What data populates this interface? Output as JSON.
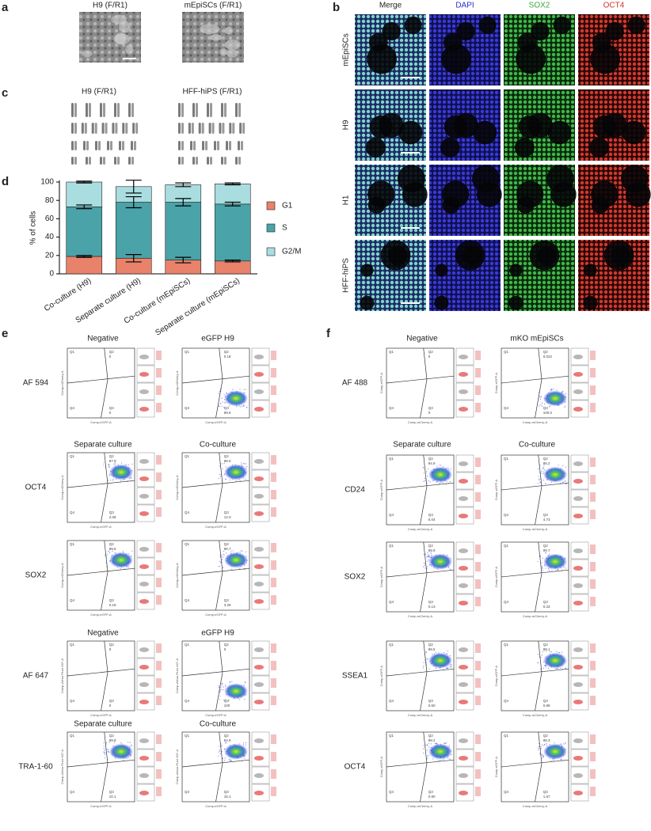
{
  "panel_a": {
    "label": "a",
    "titles": [
      "H9 (F/R1)",
      "mEpiSCs (F/R1)"
    ]
  },
  "panel_b": {
    "label": "b",
    "columns": [
      "Merge",
      "DAPI",
      "SOX2",
      "OCT4"
    ],
    "rows": [
      "mEpiSCs",
      "H9",
      "H1",
      "HFF-hiPS"
    ]
  },
  "panel_c": {
    "label": "c",
    "titles": [
      "H9 (F/R1)",
      "HFF-hiPS (F/R1)"
    ]
  },
  "chart_data": {
    "type": "bar",
    "stacked": true,
    "panel_label": "d",
    "ylabel": "% of cells",
    "categories": [
      "Co-culture (H9)",
      "Separate culture (H9)",
      "Co-culture (mEpiSCs)",
      "Separate culture (mEpiSCs)"
    ],
    "series": [
      {
        "name": "G1",
        "color": "#e8826a",
        "values": [
          19,
          17,
          15,
          14
        ],
        "errors": [
          1,
          4,
          3,
          1
        ]
      },
      {
        "name": "S",
        "color": "#4aa3a8",
        "values": [
          54,
          61,
          63,
          62
        ],
        "errors": [
          2,
          6,
          4,
          2
        ]
      },
      {
        "name": "G2/M",
        "color": "#a9dde0",
        "values": [
          27,
          17,
          19,
          22
        ],
        "errors": [
          1,
          7,
          2,
          1
        ]
      }
    ],
    "ylim": [
      0,
      100
    ],
    "yticks": [
      0,
      20,
      40,
      60,
      80,
      100
    ]
  },
  "panel_e": {
    "label": "e",
    "quadrants": [
      "Q1",
      "Q2",
      "Q3",
      "Q4"
    ],
    "blocks": [
      {
        "headings": [
          "Negative",
          "eGFP H9"
        ],
        "x_label": "Comp-eGFP-A",
        "y_label": "Comp-mCherry-A",
        "rows": [
          {
            "name": "AF 594",
            "plots": [
              {
                "q2": "0",
                "q3": "0"
              },
              {
                "q2": "0.18",
                "q3": "99.8"
              }
            ]
          }
        ]
      },
      {
        "headings": [
          "Separate culture",
          "Co-culture"
        ],
        "x_label": "Comp-eGFP-A",
        "y_label": "Comp-mCherry-A",
        "rows": [
          {
            "name": "OCT4",
            "plots": [
              {
                "q2": "97.9",
                "q3": "2.08"
              },
              {
                "q2": "88.0",
                "q3": "12.0"
              }
            ]
          },
          {
            "name": "SOX2",
            "plots": [
              {
                "q2": "99.8",
                "q3": "0.18"
              },
              {
                "q2": "96.7",
                "q3": "3.28"
              }
            ]
          }
        ]
      },
      {
        "headings": [
          "Negative",
          "eGFP H9"
        ],
        "x_label": "Comp-eGFP-A",
        "y_label": "Comp-Alexa Fluor 647-A",
        "rows": [
          {
            "name": "AF 647",
            "plots": [
              {
                "q2": "0",
                "q3": "0"
              },
              {
                "q2": "0",
                "q3": "100"
              }
            ]
          }
        ]
      },
      {
        "headings": [
          "Separate culture",
          "Co-culture"
        ],
        "x_label": "Comp-eGFP-A",
        "y_label": "Comp-Alexa Fluor 647-A",
        "rows": [
          {
            "name": "TRA-1-60",
            "plots": [
              {
                "q2": "89.9",
                "q3": "10.1"
              },
              {
                "q2": "84.9",
                "q3": "15.1"
              }
            ]
          }
        ]
      }
    ]
  },
  "panel_f": {
    "label": "f",
    "quadrants": [
      "Q1",
      "Q2",
      "Q3",
      "Q4"
    ],
    "blocks": [
      {
        "headings": [
          "Negative",
          "mKO mEpiSCs"
        ],
        "x_label": "Comp-mCherry-A",
        "y_label": "Comp-eGFP-A",
        "rows": [
          {
            "name": "AF 488",
            "plots": [
              {
                "q2": "0",
                "q3": "0"
              },
              {
                "q2": "0.022",
                "q3": "100.0"
              }
            ]
          }
        ]
      },
      {
        "headings": [
          "Separate culture",
          "Co-culture"
        ],
        "x_label": "Comp-mCherry-A",
        "y_label": "Comp-eGFP-A",
        "rows": [
          {
            "name": "CD24",
            "plots": [
              {
                "q2": "94.9",
                "q3": "5.04"
              },
              {
                "q2": "95.2",
                "q3": "4.73"
              }
            ]
          },
          {
            "name": "SOX2",
            "plots": [
              {
                "q2": "99.9",
                "q3": "0.13"
              },
              {
                "q2": "99.7",
                "q3": "0.33"
              }
            ]
          },
          {
            "name": "SSEA1",
            "plots": [
              {
                "q2": "99.5",
                "q3": "0.50"
              },
              {
                "q2": "99.1",
                "q3": "0.88"
              }
            ]
          },
          {
            "name": "OCT4",
            "plots": [
              {
                "q2": "99.2",
                "q3": "0.80"
              },
              {
                "q2": "98.3",
                "q3": "1.67"
              }
            ]
          }
        ]
      }
    ]
  }
}
